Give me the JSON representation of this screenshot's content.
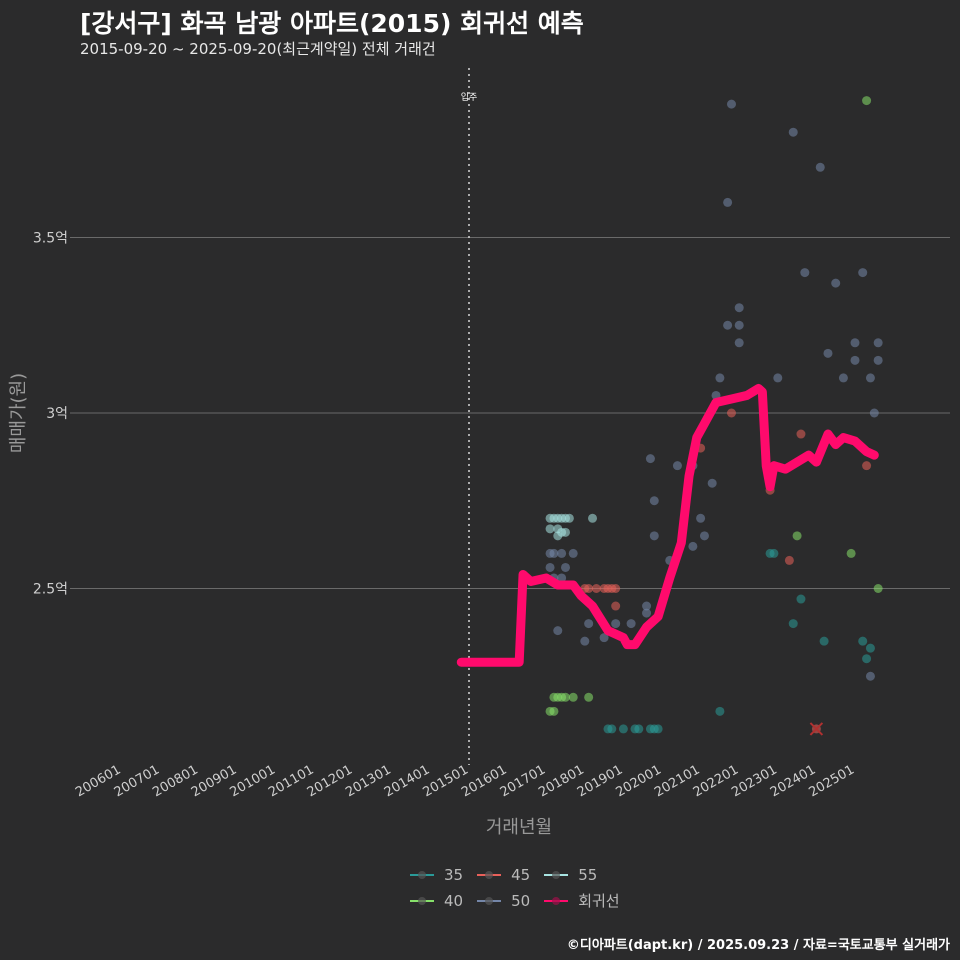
{
  "title": "[강서구] 화곡 남광 아파트(2015) 회귀선 예측",
  "subtitle": "2015-09-20 ~ 2025-09-20(최근계약일) 전체 거래건",
  "footer": "©디아파트(dapt.kr) / 2025.09.23 / 자료=국토교통부 실거래가",
  "chart_data": {
    "type": "scatter",
    "xlabel": "거래년월",
    "ylabel": "매매가(원)",
    "xlim": [
      2005.6,
      2026.0
    ],
    "ylim": [
      2.01,
      3.98
    ],
    "x_ticks": [
      "200601",
      "200701",
      "200801",
      "200901",
      "201001",
      "201101",
      "201201",
      "201301",
      "201401",
      "201501",
      "201601",
      "201701",
      "201801",
      "201901",
      "202001",
      "202101",
      "202201",
      "202301",
      "202401",
      "202501"
    ],
    "y_ticks": [
      {
        "v": 2.5,
        "label": "2.5억"
      },
      {
        "v": 3.0,
        "label": "3억"
      },
      {
        "v": 3.5,
        "label": "3.5억"
      }
    ],
    "annotation": {
      "x": 2015.0,
      "label": "입주"
    },
    "colors": {
      "35": "#2a9a98",
      "40": "#86e06a",
      "45": "#e8605a",
      "50": "#7486a8",
      "55": "#a8e4e2",
      "회귀선": "#ff0a6c"
    },
    "legend": [
      "35",
      "45",
      "55",
      "40",
      "50",
      "회귀선"
    ],
    "series": [
      {
        "name": "35",
        "points": [
          [
            2018.6,
            2.1
          ],
          [
            2018.7,
            2.1
          ],
          [
            2019.0,
            2.1
          ],
          [
            2019.3,
            2.1
          ],
          [
            2019.4,
            2.1
          ],
          [
            2019.7,
            2.1
          ],
          [
            2019.8,
            2.1
          ],
          [
            2019.9,
            2.1
          ],
          [
            2021.5,
            2.15
          ],
          [
            2022.8,
            2.6
          ],
          [
            2022.9,
            2.6
          ],
          [
            2023.4,
            2.4
          ],
          [
            2023.6,
            2.47
          ],
          [
            2024.2,
            2.35
          ],
          [
            2025.2,
            2.35
          ],
          [
            2025.3,
            2.3
          ],
          [
            2025.4,
            2.33
          ]
        ]
      },
      {
        "name": "40",
        "points": [
          [
            2017.2,
            2.19
          ],
          [
            2017.3,
            2.19
          ],
          [
            2017.4,
            2.19
          ],
          [
            2017.5,
            2.19
          ],
          [
            2017.7,
            2.19
          ],
          [
            2018.1,
            2.19
          ],
          [
            2017.1,
            2.15
          ],
          [
            2017.2,
            2.15
          ],
          [
            2023.5,
            2.65
          ],
          [
            2024.9,
            2.6
          ],
          [
            2025.6,
            2.5
          ],
          [
            2025.3,
            3.89
          ]
        ]
      },
      {
        "name": "45",
        "points": [
          [
            2018.0,
            2.5
          ],
          [
            2018.1,
            2.5
          ],
          [
            2018.3,
            2.5
          ],
          [
            2018.5,
            2.5
          ],
          [
            2018.6,
            2.5
          ],
          [
            2018.7,
            2.5
          ],
          [
            2018.8,
            2.5
          ],
          [
            2018.8,
            2.45
          ],
          [
            2021.0,
            2.9
          ],
          [
            2021.8,
            3.0
          ],
          [
            2022.8,
            2.78
          ],
          [
            2023.3,
            2.58
          ],
          [
            2023.6,
            2.94
          ],
          [
            2025.3,
            2.85
          ],
          [
            2024.0,
            2.1
          ]
        ]
      },
      {
        "name": "50",
        "points": [
          [
            2017.1,
            2.6
          ],
          [
            2017.2,
            2.6
          ],
          [
            2017.4,
            2.6
          ],
          [
            2017.7,
            2.6
          ],
          [
            2017.1,
            2.56
          ],
          [
            2017.5,
            2.56
          ],
          [
            2017.2,
            2.53
          ],
          [
            2017.4,
            2.53
          ],
          [
            2017.3,
            2.38
          ],
          [
            2018.0,
            2.35
          ],
          [
            2018.1,
            2.4
          ],
          [
            2018.5,
            2.36
          ],
          [
            2018.8,
            2.4
          ],
          [
            2019.2,
            2.4
          ],
          [
            2019.6,
            2.45
          ],
          [
            2019.6,
            2.43
          ],
          [
            2019.7,
            2.87
          ],
          [
            2019.8,
            2.75
          ],
          [
            2019.8,
            2.65
          ],
          [
            2020.2,
            2.58
          ],
          [
            2020.4,
            2.85
          ],
          [
            2020.8,
            2.85
          ],
          [
            2020.8,
            2.62
          ],
          [
            2021.0,
            2.7
          ],
          [
            2021.1,
            2.65
          ],
          [
            2021.3,
            2.8
          ],
          [
            2021.4,
            3.05
          ],
          [
            2021.5,
            3.1
          ],
          [
            2021.7,
            3.6
          ],
          [
            2021.7,
            3.25
          ],
          [
            2021.8,
            3.88
          ],
          [
            2022.0,
            3.3
          ],
          [
            2022.0,
            3.25
          ],
          [
            2022.0,
            3.2
          ],
          [
            2023.0,
            3.1
          ],
          [
            2023.4,
            3.8
          ],
          [
            2023.7,
            3.4
          ],
          [
            2024.1,
            3.7
          ],
          [
            2024.3,
            3.17
          ],
          [
            2024.5,
            3.37
          ],
          [
            2024.7,
            3.1
          ],
          [
            2025.0,
            3.2
          ],
          [
            2025.0,
            3.15
          ],
          [
            2025.2,
            3.4
          ],
          [
            2025.4,
            3.1
          ],
          [
            2025.5,
            3.0
          ],
          [
            2025.6,
            3.2
          ],
          [
            2025.6,
            3.15
          ],
          [
            2025.4,
            2.25
          ]
        ]
      },
      {
        "name": "55",
        "points": [
          [
            2017.1,
            2.7
          ],
          [
            2017.2,
            2.7
          ],
          [
            2017.3,
            2.7
          ],
          [
            2017.4,
            2.7
          ],
          [
            2017.5,
            2.7
          ],
          [
            2017.6,
            2.7
          ],
          [
            2018.2,
            2.7
          ],
          [
            2017.1,
            2.67
          ],
          [
            2017.3,
            2.67
          ],
          [
            2017.3,
            2.65
          ],
          [
            2017.4,
            2.66
          ],
          [
            2017.5,
            2.66
          ]
        ]
      }
    ],
    "regression": [
      [
        2014.8,
        2.29
      ],
      [
        2016.3,
        2.29
      ],
      [
        2016.4,
        2.54
      ],
      [
        2016.6,
        2.52
      ],
      [
        2017.0,
        2.53
      ],
      [
        2017.3,
        2.51
      ],
      [
        2017.7,
        2.51
      ],
      [
        2017.9,
        2.48
      ],
      [
        2018.2,
        2.45
      ],
      [
        2018.6,
        2.38
      ],
      [
        2019.0,
        2.36
      ],
      [
        2019.1,
        2.34
      ],
      [
        2019.3,
        2.34
      ],
      [
        2019.6,
        2.39
      ],
      [
        2019.9,
        2.42
      ],
      [
        2020.2,
        2.53
      ],
      [
        2020.5,
        2.63
      ],
      [
        2020.7,
        2.82
      ],
      [
        2020.9,
        2.93
      ],
      [
        2021.1,
        2.97
      ],
      [
        2021.4,
        3.03
      ],
      [
        2021.8,
        3.04
      ],
      [
        2022.2,
        3.05
      ],
      [
        2022.5,
        3.07
      ],
      [
        2022.6,
        3.06
      ],
      [
        2022.7,
        2.85
      ],
      [
        2022.8,
        2.79
      ],
      [
        2022.9,
        2.85
      ],
      [
        2023.2,
        2.84
      ],
      [
        2023.5,
        2.86
      ],
      [
        2023.8,
        2.88
      ],
      [
        2024.0,
        2.86
      ],
      [
        2024.3,
        2.94
      ],
      [
        2024.5,
        2.91
      ],
      [
        2024.7,
        2.93
      ],
      [
        2025.0,
        2.92
      ],
      [
        2025.3,
        2.89
      ],
      [
        2025.5,
        2.88
      ]
    ]
  }
}
